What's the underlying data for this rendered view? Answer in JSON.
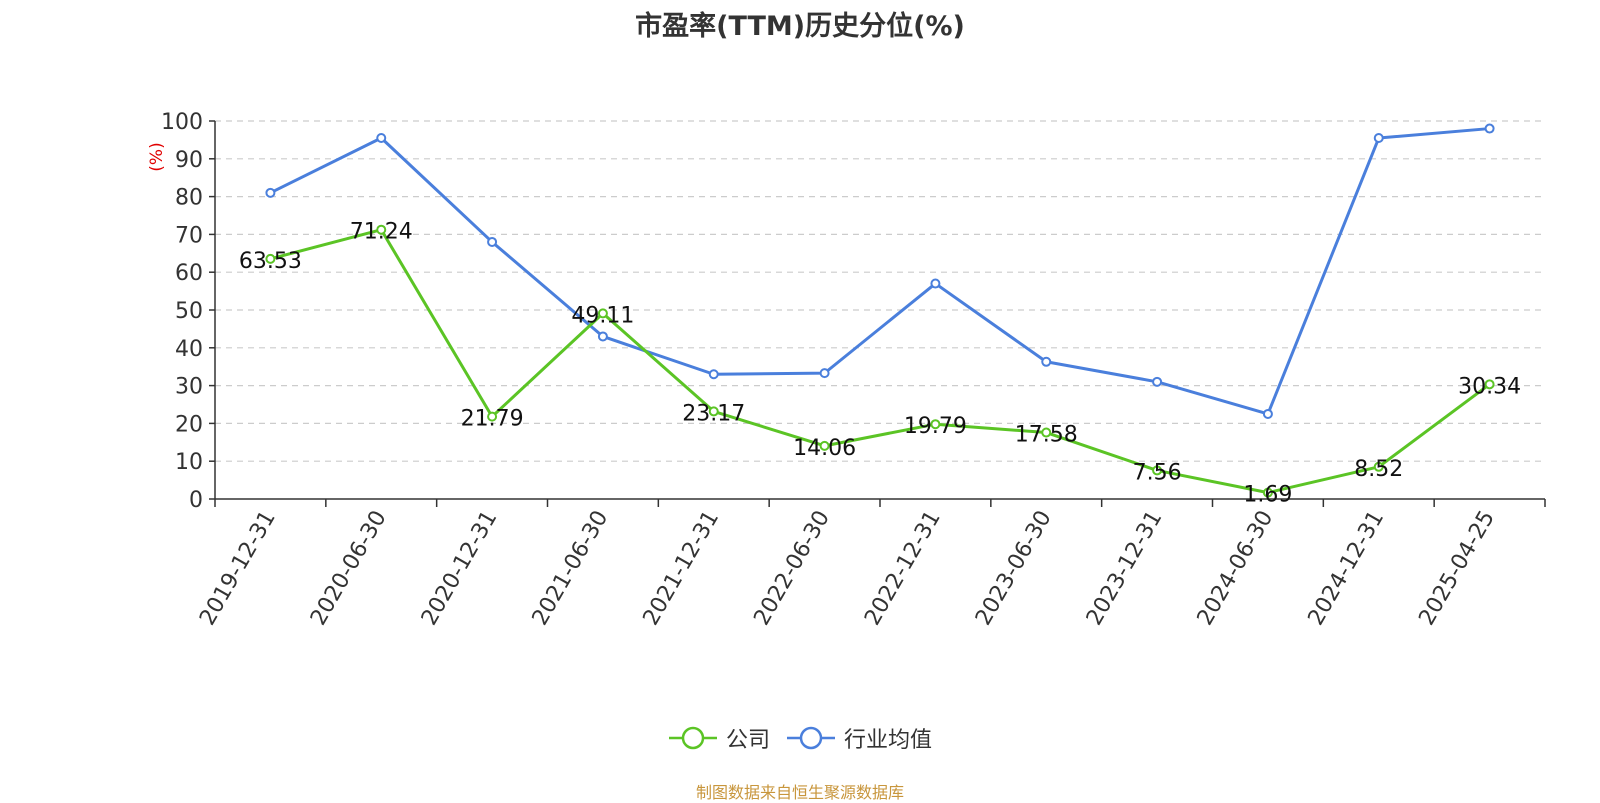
{
  "chart_data": {
    "type": "line",
    "title": "市盈率(TTM)历史分位(%)",
    "ylabel": "(%)",
    "xlabel": "",
    "ylim": [
      0,
      100
    ],
    "yticks": [
      0,
      10,
      20,
      30,
      40,
      50,
      60,
      70,
      80,
      90,
      100
    ],
    "grid": true,
    "legend_position": "bottom-center",
    "categories": [
      "2019-12-31",
      "2020-06-30",
      "2020-12-31",
      "2021-06-30",
      "2021-12-31",
      "2022-06-30",
      "2022-12-31",
      "2023-06-30",
      "2023-12-31",
      "2024-06-30",
      "2024-12-31",
      "2025-04-25"
    ],
    "series": [
      {
        "name": "公司",
        "color": "#5bc425",
        "values": [
          63.53,
          71.24,
          21.79,
          49.11,
          23.17,
          14.06,
          19.79,
          17.58,
          7.56,
          1.69,
          8.52,
          30.34
        ],
        "data_labels": [
          "63.53",
          "71.24",
          "21.79",
          "49.11",
          "23.17",
          "14.06",
          "19.79",
          "17.58",
          "7.56",
          "1.69",
          "8.52",
          "30.34"
        ]
      },
      {
        "name": "行业均值",
        "color": "#4a7fdc",
        "values": [
          81,
          95.5,
          68,
          43,
          33,
          33.3,
          57,
          36.3,
          31,
          22.5,
          95.5,
          98
        ]
      }
    ]
  },
  "source_note": "制图数据来自恒生聚源数据库"
}
